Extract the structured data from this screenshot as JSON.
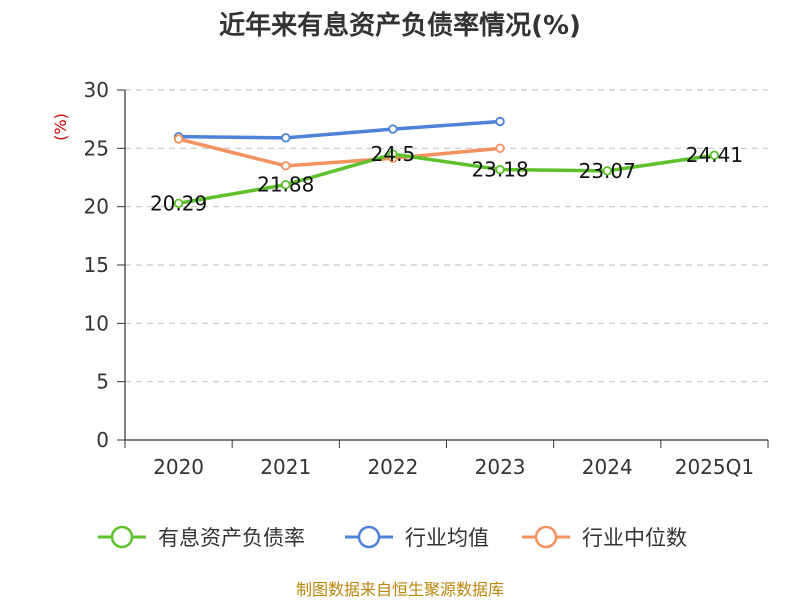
{
  "chart_data": {
    "type": "line",
    "title": "近年来有息资产负债率情况(%)",
    "ylabel": "(%)",
    "categories": [
      "2020",
      "2021",
      "2022",
      "2023",
      "2024",
      "2025Q1"
    ],
    "ylim": [
      0,
      30
    ],
    "yticks": [
      "0",
      "5",
      "10",
      "15",
      "20",
      "25",
      "30"
    ],
    "grid": true,
    "legend_position": "bottom",
    "series": [
      {
        "name": "有息资产负债率",
        "color": "#5ec12c",
        "values": [
          20.29,
          21.88,
          24.5,
          23.18,
          23.07,
          24.41
        ],
        "labels": [
          "20.29",
          "21.88",
          "24.5",
          "23.18",
          "23.07",
          "24.41"
        ]
      },
      {
        "name": "行业均值",
        "color": "#4e82d8",
        "values": [
          26.0,
          25.9,
          26.65,
          27.3,
          null,
          null
        ]
      },
      {
        "name": "行业中位数",
        "color": "#f3925e",
        "values": [
          25.8,
          23.5,
          24.15,
          25.0,
          null,
          null
        ]
      }
    ]
  },
  "source": "制图数据来自恒生聚源数据库"
}
